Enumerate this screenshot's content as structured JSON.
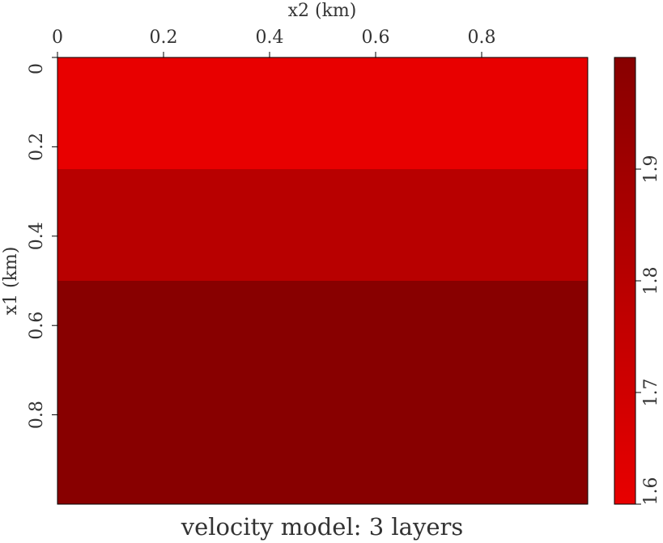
{
  "chart_data": {
    "type": "heatmap",
    "title": "velocity model: 3 layers",
    "x_label": "x2 (km)",
    "y_label": "x1 (km)",
    "xlim": [
      0,
      1
    ],
    "xticks": [
      0,
      0.2,
      0.4,
      0.6,
      0.8
    ],
    "ylim": [
      0,
      1
    ],
    "yticks": [
      0,
      0.2,
      0.4,
      0.6,
      0.8
    ],
    "y_edges": [
      0,
      0.25,
      0.5,
      1
    ],
    "values": [
      1.6,
      1.8,
      2.0
    ],
    "clim": [
      1.6,
      2.0
    ],
    "cticks": [
      1.6,
      1.7,
      1.8,
      1.9
    ],
    "colormap": [
      "#e80000",
      "#880000"
    ]
  }
}
